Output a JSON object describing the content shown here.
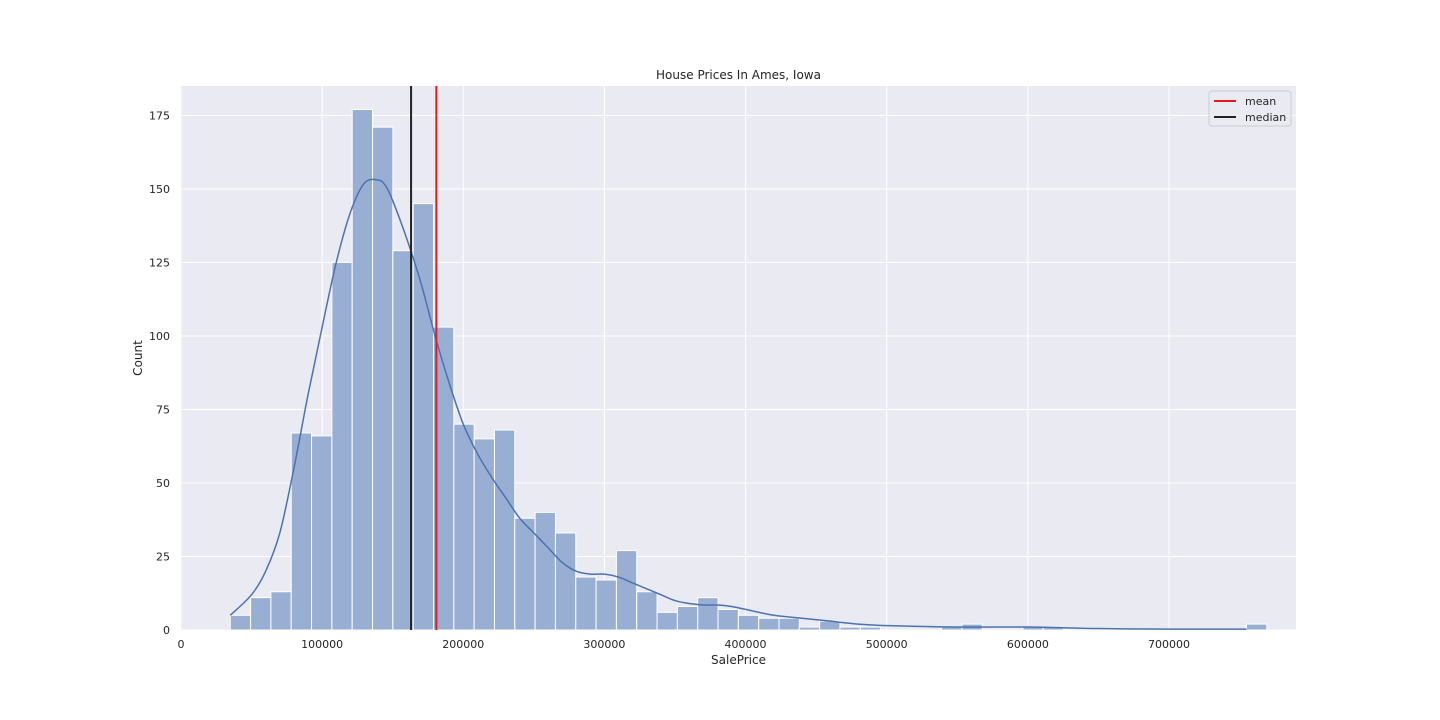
{
  "chart_data": {
    "type": "bar",
    "title": "House Prices In Ames, Iowa",
    "xlabel": "SalePrice",
    "ylabel": "Count",
    "xlim": [
      0,
      790000
    ],
    "ylim": [
      0,
      185
    ],
    "x_ticks": [
      0,
      100000,
      200000,
      300000,
      400000,
      500000,
      600000,
      700000
    ],
    "y_ticks": [
      0,
      25,
      50,
      75,
      100,
      125,
      150,
      175
    ],
    "grid": true,
    "legend_position": "top-right",
    "bin_start": 34900,
    "bin_width": 14400,
    "counts": [
      5,
      11,
      13,
      67,
      66,
      125,
      177,
      171,
      129,
      145,
      103,
      70,
      65,
      68,
      38,
      40,
      33,
      18,
      17,
      27,
      13,
      6,
      8,
      11,
      7,
      5,
      4,
      4,
      1,
      3,
      1,
      1,
      0,
      0,
      0,
      1,
      2,
      0,
      0,
      1,
      1,
      0,
      0,
      0,
      0,
      0,
      0,
      0,
      0,
      0,
      2
    ],
    "kde": {
      "name": "",
      "x": [
        34900,
        50000,
        60000,
        70000,
        80000,
        90000,
        100000,
        110000,
        120000,
        130000,
        140000,
        145000,
        150000,
        160000,
        170000,
        180000,
        190000,
        200000,
        210000,
        220000,
        230000,
        240000,
        250000,
        260000,
        270000,
        280000,
        290000,
        300000,
        310000,
        320000,
        330000,
        340000,
        350000,
        360000,
        370000,
        380000,
        390000,
        400000,
        420000,
        440000,
        460000,
        480000,
        500000,
        550000,
        600000,
        650000,
        700000,
        755000
      ],
      "y": [
        5,
        12,
        20,
        33,
        55,
        80,
        103,
        125,
        142,
        152,
        153,
        151,
        146,
        133,
        118,
        100,
        84,
        70,
        60,
        52,
        45,
        38,
        33,
        28,
        23,
        20,
        19,
        19,
        18,
        16,
        14,
        12,
        10,
        9,
        8.5,
        8.5,
        8,
        7,
        5,
        4,
        3,
        2,
        1.5,
        1,
        1,
        0.5,
        0.3,
        0.3
      ]
    },
    "vlines": [
      {
        "name": "mean",
        "x": 180921,
        "color": "#e41a1c"
      },
      {
        "name": "median",
        "x": 163000,
        "color": "#222222"
      }
    ],
    "colors": {
      "background": "#eaeaf2",
      "bar_fill": "#99aed3",
      "bar_edge": "#ffffff",
      "kde_line": "#4c72b0",
      "grid": "#ffffff"
    }
  }
}
